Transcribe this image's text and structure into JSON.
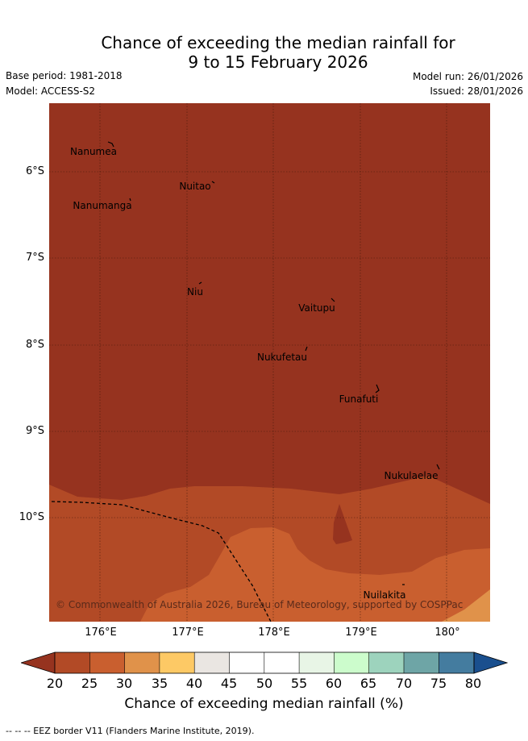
{
  "title": {
    "line1": "Chance of exceeding the median rainfall for",
    "line2": "9 to 15 February 2026"
  },
  "meta": {
    "base_period": "Base period: 1981-2018",
    "model": "Model: ACCESS-S2",
    "model_run": "Model run: 26/01/2026",
    "issued": "Issued: 28/01/2026"
  },
  "map": {
    "lat_ticks": [
      "6°S",
      "7°S",
      "8°S",
      "9°S",
      "10°S"
    ],
    "lon_ticks": [
      "176°E",
      "177°E",
      "178°E",
      "179°E",
      "180°"
    ],
    "places": [
      "Nanumea",
      "Nuitao",
      "Nanumanga",
      "Niu",
      "Vaitupu",
      "Nukufetau",
      "Funafuti",
      "Nukulaelae",
      "Nuilakita"
    ],
    "copyright": "© Commonwealth of Australia 2026, Bureau of Meteorology, supported by COSPPac",
    "colors": {
      "bin_20_25": "#96331f",
      "bin_25_30": "#b24a26",
      "bin_30_35": "#c95f2f",
      "bin_35_40": "#e0924a"
    }
  },
  "colorbar": {
    "ticks": [
      "20",
      "25",
      "30",
      "35",
      "40",
      "45",
      "50",
      "55",
      "60",
      "65",
      "70",
      "75",
      "80"
    ],
    "label": "Chance of exceeding median rainfall (%)",
    "colors": [
      "#96331f",
      "#b24a26",
      "#c95f2f",
      "#e0924a",
      "#fdc965",
      "#eae6e2",
      "#ffffff",
      "#ffffff",
      "#e8f5e6",
      "#ccfccc",
      "#9dd3bd",
      "#6ea5a6",
      "#447c9f",
      "#1a4f8e"
    ]
  },
  "footnote": "--  --  -- EEZ border V11 (Flanders Marine Institute, 2019)."
}
